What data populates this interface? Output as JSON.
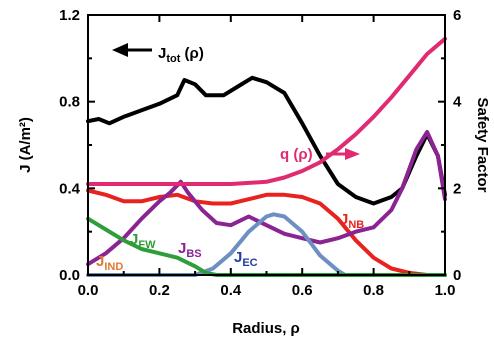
{
  "chart_data": {
    "type": "line",
    "xlabel": "Radius, ρ",
    "ylabel_left": "J (A/m²)",
    "ylabel_right": "Safety Factor",
    "xlim": [
      0,
      1
    ],
    "ylim_left": [
      0,
      1.2
    ],
    "ylim_right": [
      0,
      6
    ],
    "x_ticks": [
      "0.0",
      "0.2",
      "0.4",
      "0.6",
      "0.8",
      "1.0"
    ],
    "y_ticks_left": [
      "0.0",
      "0.4",
      "0.8",
      "1.2"
    ],
    "y_ticks_right": [
      "0",
      "2",
      "4",
      "6"
    ],
    "series": [
      {
        "key": "jtot",
        "axis": "left",
        "color": "#000000",
        "x": [
          0.0,
          0.03,
          0.06,
          0.1,
          0.15,
          0.2,
          0.25,
          0.27,
          0.3,
          0.33,
          0.38,
          0.42,
          0.46,
          0.5,
          0.55,
          0.6,
          0.65,
          0.7,
          0.75,
          0.8,
          0.85,
          0.88,
          0.92,
          0.95,
          0.98,
          1.0
        ],
        "y": [
          0.71,
          0.72,
          0.7,
          0.73,
          0.76,
          0.79,
          0.83,
          0.9,
          0.88,
          0.83,
          0.83,
          0.87,
          0.91,
          0.89,
          0.84,
          0.7,
          0.55,
          0.42,
          0.36,
          0.33,
          0.36,
          0.4,
          0.55,
          0.65,
          0.55,
          0.37
        ]
      },
      {
        "key": "jnb",
        "axis": "left",
        "color": "#e8231f",
        "x": [
          0.0,
          0.05,
          0.1,
          0.15,
          0.2,
          0.25,
          0.3,
          0.35,
          0.4,
          0.45,
          0.5,
          0.55,
          0.6,
          0.65,
          0.7,
          0.75,
          0.8,
          0.85,
          0.9,
          0.95,
          1.0
        ],
        "y": [
          0.39,
          0.37,
          0.34,
          0.34,
          0.36,
          0.37,
          0.34,
          0.33,
          0.33,
          0.35,
          0.37,
          0.37,
          0.36,
          0.33,
          0.26,
          0.16,
          0.08,
          0.03,
          0.01,
          0.0,
          0.0
        ]
      },
      {
        "key": "jbs",
        "axis": "left",
        "color": "#8b2392",
        "x": [
          0.0,
          0.05,
          0.1,
          0.15,
          0.2,
          0.23,
          0.26,
          0.28,
          0.32,
          0.36,
          0.4,
          0.45,
          0.5,
          0.55,
          0.6,
          0.65,
          0.7,
          0.75,
          0.8,
          0.85,
          0.88,
          0.92,
          0.95,
          0.98,
          1.0
        ],
        "y": [
          0.05,
          0.1,
          0.17,
          0.26,
          0.34,
          0.38,
          0.43,
          0.38,
          0.3,
          0.24,
          0.23,
          0.27,
          0.23,
          0.19,
          0.17,
          0.15,
          0.17,
          0.2,
          0.22,
          0.3,
          0.4,
          0.58,
          0.66,
          0.55,
          0.35
        ]
      },
      {
        "key": "jec",
        "axis": "left",
        "color": "#6e8fc2",
        "x": [
          0.0,
          0.3,
          0.35,
          0.4,
          0.45,
          0.5,
          0.52,
          0.55,
          0.6,
          0.65,
          0.7,
          0.72,
          0.75,
          1.0
        ],
        "y": [
          0.0,
          0.0,
          0.03,
          0.1,
          0.2,
          0.27,
          0.28,
          0.27,
          0.2,
          0.09,
          0.02,
          0.0,
          0.0,
          0.0
        ]
      },
      {
        "key": "jfw",
        "axis": "left",
        "color": "#2f9e3a",
        "x": [
          0.0,
          0.05,
          0.1,
          0.15,
          0.2,
          0.25,
          0.3,
          0.33,
          0.36,
          0.4,
          1.0
        ],
        "y": [
          0.26,
          0.21,
          0.16,
          0.12,
          0.1,
          0.08,
          0.04,
          0.01,
          0.0,
          0.0,
          0.0
        ]
      },
      {
        "key": "q",
        "axis": "right",
        "color": "#e02b72",
        "x": [
          0.0,
          0.1,
          0.2,
          0.3,
          0.4,
          0.5,
          0.55,
          0.6,
          0.65,
          0.7,
          0.75,
          0.8,
          0.85,
          0.9,
          0.95,
          1.0
        ],
        "y": [
          2.1,
          2.1,
          2.1,
          2.1,
          2.1,
          2.15,
          2.25,
          2.4,
          2.6,
          2.9,
          3.25,
          3.65,
          4.1,
          4.6,
          5.1,
          5.45
        ]
      }
    ],
    "annotations": {
      "jtot": {
        "main": "J",
        "sub": "tot",
        "rest": " (ρ)",
        "color": "#000000"
      },
      "q": {
        "main": "q (ρ)",
        "color": "#e02b72"
      },
      "jnb": {
        "main": "J",
        "sub": "NB",
        "color": "#e8231f"
      },
      "jbs": {
        "main": "J",
        "sub": "BS",
        "color": "#8b2392"
      },
      "jec": {
        "main": "J",
        "sub": "EC",
        "color": "#1f3fa0"
      },
      "jfw": {
        "main": "J",
        "sub": "FW",
        "color": "#2f9e3a"
      },
      "jind": {
        "main": "J",
        "sub": "IND",
        "color": "#e07832"
      }
    }
  }
}
